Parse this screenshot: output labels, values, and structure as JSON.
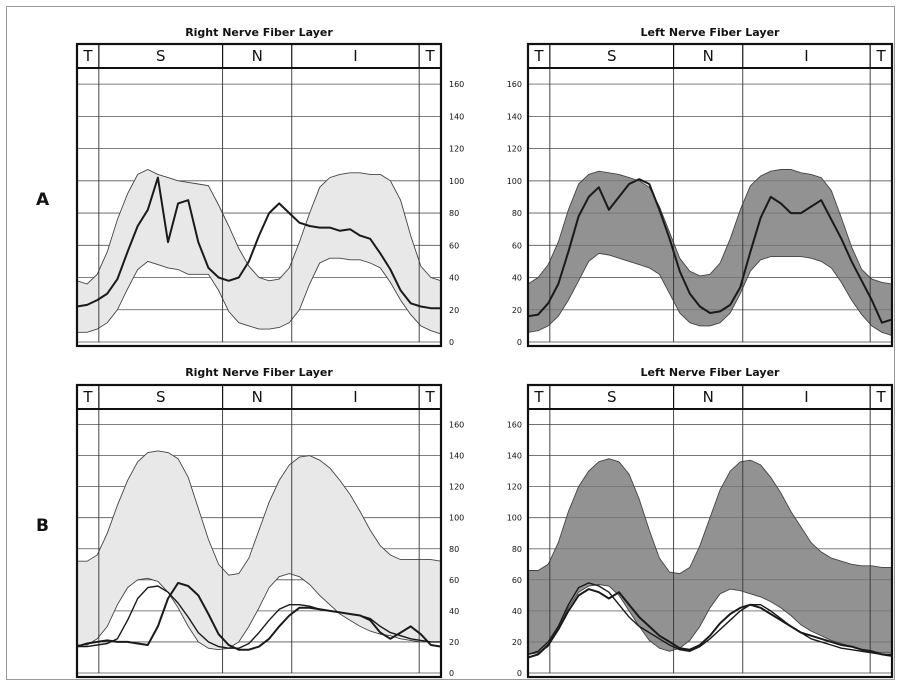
{
  "row_labels": [
    "A",
    "B"
  ],
  "chart_data": [
    {
      "type": "line",
      "title": "Right Nerve Fiber Layer",
      "sectors": [
        "T",
        "S",
        "N",
        "I",
        "T"
      ],
      "y_ticks": [
        "0",
        "20",
        "40",
        "60",
        "80",
        "100",
        "120",
        "140",
        "160"
      ],
      "ylim": [
        0,
        170
      ],
      "y_axis_side": "right",
      "band_color": "#e8e8e8",
      "series": [
        {
          "role": "band_upper",
          "values": [
            38,
            36,
            42,
            56,
            76,
            92,
            104,
            107,
            104,
            102,
            100,
            99,
            98,
            97,
            85,
            72,
            58,
            47,
            40,
            38,
            39,
            46,
            62,
            80,
            96,
            102,
            104,
            105,
            105,
            104,
            104,
            100,
            88,
            66,
            47,
            40,
            38
          ]
        },
        {
          "role": "band_lower",
          "values": [
            6,
            6,
            8,
            12,
            20,
            33,
            45,
            50,
            48,
            46,
            45,
            42,
            42,
            42,
            32,
            19,
            12,
            10,
            8,
            8,
            9,
            12,
            20,
            36,
            49,
            52,
            52,
            51,
            51,
            49,
            46,
            37,
            26,
            17,
            10,
            7,
            5
          ]
        },
        {
          "role": "measured",
          "values": [
            22,
            23,
            26,
            30,
            39,
            56,
            72,
            82,
            102,
            62,
            86,
            88,
            62,
            46,
            40,
            38,
            40,
            50,
            66,
            80,
            86,
            80,
            74,
            72,
            71,
            71,
            69,
            70,
            66,
            64,
            55,
            45,
            32,
            24,
            22,
            21,
            21
          ]
        }
      ]
    },
    {
      "type": "line",
      "title": "Left Nerve Fiber Layer",
      "sectors": [
        "T",
        "S",
        "N",
        "I",
        "T"
      ],
      "y_ticks": [
        "0",
        "20",
        "40",
        "60",
        "80",
        "100",
        "120",
        "140",
        "160"
      ],
      "ylim": [
        0,
        170
      ],
      "y_axis_side": "left",
      "band_color": "#8c8c8c",
      "series": [
        {
          "role": "band_upper",
          "values": [
            36,
            40,
            48,
            62,
            82,
            98,
            104,
            106,
            105,
            104,
            102,
            100,
            96,
            84,
            68,
            52,
            44,
            41,
            42,
            49,
            64,
            82,
            97,
            103,
            106,
            107,
            107,
            105,
            104,
            102,
            94,
            77,
            59,
            45,
            39,
            37,
            36
          ]
        },
        {
          "role": "band_lower",
          "values": [
            6,
            7,
            10,
            16,
            26,
            38,
            50,
            55,
            54,
            52,
            50,
            48,
            46,
            42,
            30,
            18,
            12,
            10,
            10,
            12,
            18,
            30,
            44,
            51,
            53,
            53,
            53,
            53,
            52,
            50,
            46,
            37,
            26,
            17,
            10,
            6,
            4
          ]
        },
        {
          "role": "measured",
          "values": [
            16,
            17,
            24,
            36,
            56,
            78,
            90,
            96,
            82,
            90,
            98,
            101,
            98,
            82,
            64,
            44,
            30,
            22,
            18,
            19,
            23,
            34,
            56,
            77,
            90,
            86,
            80,
            80,
            84,
            88,
            76,
            64,
            50,
            38,
            26,
            12,
            14
          ]
        }
      ]
    },
    {
      "type": "line",
      "title": "Right Nerve Fiber Layer",
      "sectors": [
        "T",
        "S",
        "N",
        "I",
        "T"
      ],
      "y_ticks": [
        "0",
        "20",
        "40",
        "60",
        "80",
        "100",
        "120",
        "140",
        "160"
      ],
      "ylim": [
        0,
        170
      ],
      "y_axis_side": "right",
      "band_color": "#e8e8e8",
      "series": [
        {
          "role": "band_upper",
          "values": [
            72,
            72,
            76,
            90,
            108,
            124,
            136,
            142,
            143,
            142,
            138,
            126,
            106,
            86,
            70,
            63,
            64,
            74,
            92,
            110,
            124,
            134,
            139,
            140,
            137,
            132,
            124,
            115,
            104,
            92,
            82,
            76,
            73,
            73,
            73,
            73,
            72
          ]
        },
        {
          "role": "band_lower",
          "values": [
            18,
            18,
            22,
            30,
            44,
            55,
            60,
            61,
            59,
            52,
            42,
            30,
            20,
            16,
            15,
            16,
            20,
            30,
            42,
            55,
            62,
            64,
            62,
            57,
            50,
            44,
            38,
            34,
            30,
            27,
            25,
            24,
            22,
            21,
            20,
            20,
            20
          ]
        },
        {
          "role": "measured",
          "values": [
            17,
            19,
            20,
            21,
            20,
            20,
            19,
            18,
            30,
            48,
            58,
            56,
            50,
            38,
            25,
            18,
            15,
            15,
            17,
            22,
            30,
            37,
            42,
            42,
            41,
            40,
            39,
            38,
            37,
            34,
            26,
            22,
            26,
            30,
            25,
            18,
            17
          ]
        },
        {
          "role": "measured_2",
          "values": [
            17,
            17,
            18,
            19,
            22,
            34,
            48,
            55,
            56,
            52,
            45,
            36,
            26,
            20,
            17,
            16,
            16,
            19,
            26,
            34,
            41,
            44,
            44,
            43,
            41,
            40,
            39,
            38,
            37,
            35,
            30,
            26,
            24,
            22,
            21,
            20,
            20
          ]
        }
      ]
    },
    {
      "type": "line",
      "title": "Left Nerve Fiber Layer",
      "sectors": [
        "T",
        "S",
        "N",
        "I",
        "T"
      ],
      "y_ticks": [
        "0",
        "20",
        "40",
        "60",
        "80",
        "100",
        "120",
        "140",
        "160"
      ],
      "ylim": [
        0,
        170
      ],
      "y_axis_side": "left",
      "band_color": "#8c8c8c",
      "series": [
        {
          "role": "band_upper",
          "values": [
            66,
            66,
            70,
            84,
            104,
            120,
            130,
            136,
            138,
            136,
            128,
            112,
            92,
            74,
            65,
            64,
            68,
            82,
            100,
            118,
            130,
            136,
            137,
            134,
            126,
            116,
            104,
            94,
            84,
            78,
            74,
            72,
            70,
            69,
            69,
            68,
            68
          ]
        },
        {
          "role": "band_lower",
          "values": [
            12,
            13,
            17,
            28,
            42,
            52,
            56,
            57,
            56,
            50,
            40,
            30,
            21,
            16,
            14,
            16,
            21,
            30,
            42,
            51,
            54,
            53,
            51,
            49,
            46,
            42,
            37,
            31,
            27,
            24,
            21,
            19,
            17,
            15,
            14,
            13,
            13
          ]
        },
        {
          "role": "measured",
          "values": [
            10,
            12,
            18,
            28,
            40,
            50,
            54,
            52,
            48,
            52,
            44,
            36,
            30,
            24,
            20,
            16,
            15,
            18,
            24,
            32,
            38,
            42,
            44,
            42,
            38,
            34,
            30,
            26,
            24,
            22,
            20,
            18,
            17,
            15,
            14,
            12,
            11
          ]
        },
        {
          "role": "measured_2",
          "values": [
            12,
            14,
            20,
            30,
            44,
            55,
            58,
            56,
            52,
            44,
            36,
            30,
            26,
            22,
            18,
            15,
            14,
            17,
            22,
            28,
            34,
            40,
            44,
            44,
            40,
            35,
            30,
            26,
            22,
            20,
            18,
            16,
            15,
            14,
            13,
            12,
            12
          ]
        }
      ]
    }
  ]
}
